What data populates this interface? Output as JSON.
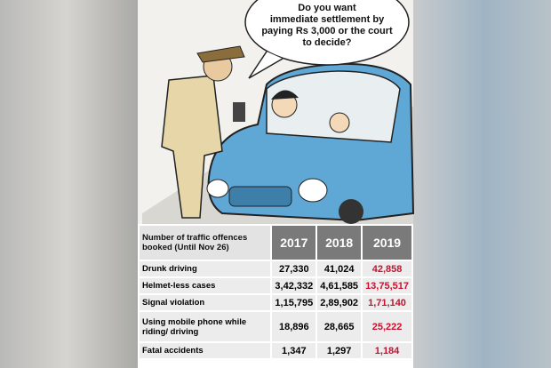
{
  "cartoon": {
    "speech_bubble": [
      "Do you want",
      "immediate settlement by",
      "paying Rs 3,000 or the court",
      "to decide?"
    ]
  },
  "table": {
    "header": [
      "Number of traffic offences booked (Until Nov 26)",
      "2017",
      "2018",
      "2019"
    ],
    "rows": [
      [
        "Drunk driving",
        "27,330",
        "41,024",
        "42,858"
      ],
      [
        "Helmet-less cases",
        "3,42,332",
        "4,61,585",
        "13,75,517"
      ],
      [
        "Signal violation",
        "1,15,795",
        "2,89,902",
        "1,71,140"
      ],
      [
        "Using mobile phone while riding/ driving",
        "18,896",
        "28,665",
        "25,222"
      ],
      [
        "Fatal accidents",
        "1,347",
        "1,297",
        "1,184"
      ]
    ]
  }
}
